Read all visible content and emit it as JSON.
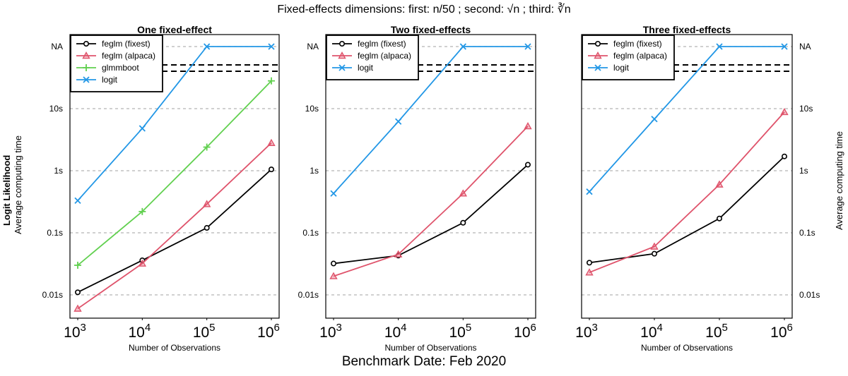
{
  "figure": {
    "title": "Fixed-effects dimensions: first: n/50 ; second: √n ; third: ∛n",
    "footer": "Benchmark Date: Feb 2020",
    "ylabel_left_bold": "Logit Likelihood",
    "ylabel_left": "Average computing time",
    "ylabel_right": "Average computing time",
    "xlabel": "Number of Observations"
  },
  "chart_data": [
    {
      "type": "line",
      "title": "One fixed-effect",
      "xlabel": "Number of Observations",
      "ylabel": "Average computing time",
      "x": [
        1000,
        10000,
        100000,
        1000000
      ],
      "x_tick_labels": [
        "10^3",
        "10^4",
        "10^5",
        "10^6"
      ],
      "y_scale": "log",
      "y_tick_labels": [
        "0.01s",
        "0.1s",
        "1s",
        "10s",
        "NA"
      ],
      "legend_position": "top-left",
      "series": [
        {
          "name": "feglm (fixest)",
          "color": "#000000",
          "marker": "circle",
          "values": [
            0.011,
            0.036,
            0.12,
            1.05
          ]
        },
        {
          "name": "feglm (alpaca)",
          "color": "#DF536B",
          "marker": "triangle",
          "values": [
            0.006,
            0.032,
            0.29,
            2.8
          ]
        },
        {
          "name": "glmmboot",
          "color": "#61D04F",
          "marker": "plus",
          "values": [
            0.03,
            0.22,
            2.4,
            28
          ]
        },
        {
          "name": "logit",
          "color": "#2297E6",
          "marker": "cross",
          "values": [
            0.33,
            4.8,
            "NA",
            "NA"
          ]
        }
      ]
    },
    {
      "type": "line",
      "title": "Two fixed-effects",
      "xlabel": "Number of Observations",
      "ylabel": "Average computing time",
      "x": [
        1000,
        10000,
        100000,
        1000000
      ],
      "x_tick_labels": [
        "10^3",
        "10^4",
        "10^5",
        "10^6"
      ],
      "y_scale": "log",
      "y_tick_labels": [
        "0.01s",
        "0.1s",
        "1s",
        "10s",
        "NA"
      ],
      "legend_position": "top-left",
      "series": [
        {
          "name": "feglm (fixest)",
          "color": "#000000",
          "marker": "circle",
          "values": [
            0.032,
            0.043,
            0.145,
            1.25
          ]
        },
        {
          "name": "feglm (alpaca)",
          "color": "#DF536B",
          "marker": "triangle",
          "values": [
            0.02,
            0.045,
            0.43,
            5.2
          ]
        },
        {
          "name": "logit",
          "color": "#2297E6",
          "marker": "cross",
          "values": [
            0.43,
            6.2,
            "NA",
            "NA"
          ]
        }
      ]
    },
    {
      "type": "line",
      "title": "Three fixed-effects",
      "xlabel": "Number of Observations",
      "ylabel": "Average computing time",
      "x": [
        1000,
        10000,
        100000,
        1000000
      ],
      "x_tick_labels": [
        "10^3",
        "10^4",
        "10^5",
        "10^6"
      ],
      "y_scale": "log",
      "y_tick_labels": [
        "0.01s",
        "0.1s",
        "1s",
        "10s",
        "NA"
      ],
      "legend_position": "top-left",
      "series": [
        {
          "name": "feglm (fixest)",
          "color": "#000000",
          "marker": "circle",
          "values": [
            0.033,
            0.046,
            0.17,
            1.7
          ]
        },
        {
          "name": "feglm (alpaca)",
          "color": "#DF536B",
          "marker": "triangle",
          "values": [
            0.023,
            0.06,
            0.6,
            8.8
          ]
        },
        {
          "name": "logit",
          "color": "#2297E6",
          "marker": "cross",
          "values": [
            0.46,
            6.8,
            "NA",
            "NA"
          ]
        }
      ]
    }
  ]
}
